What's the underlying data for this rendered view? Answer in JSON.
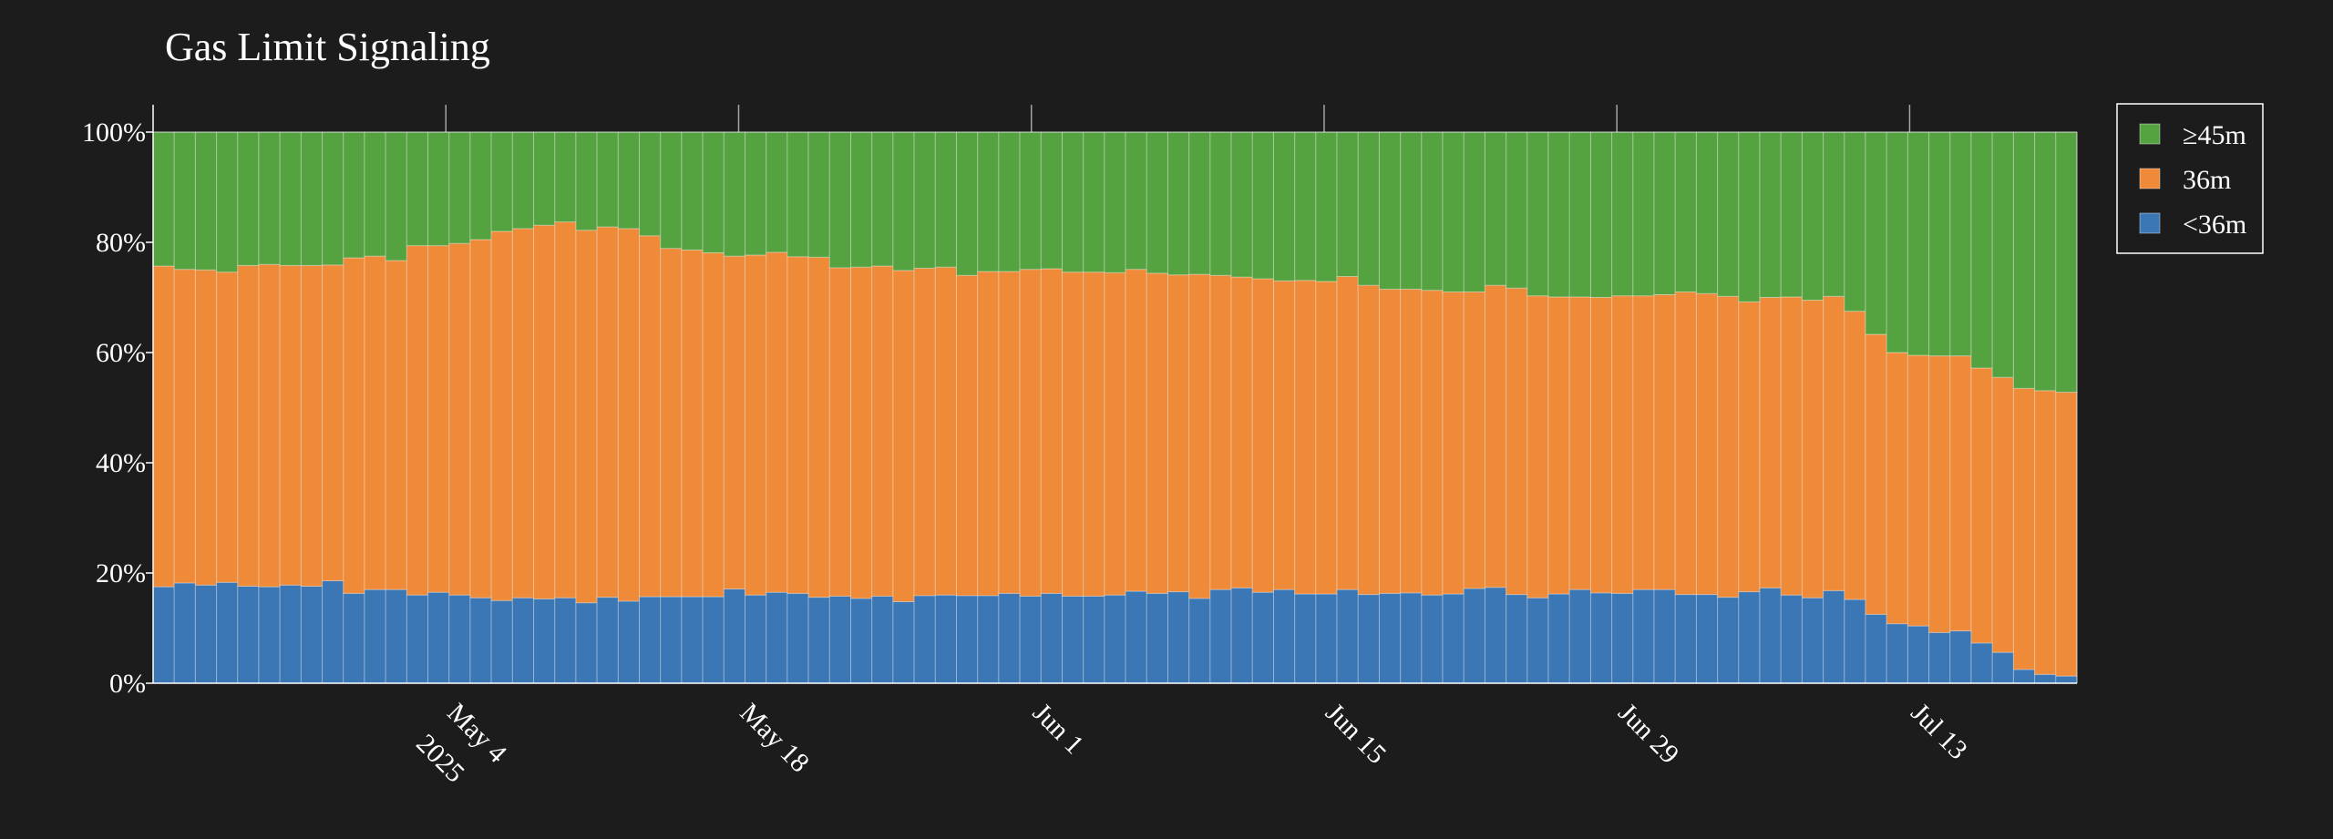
{
  "chart_data": {
    "type": "bar",
    "stacked": true,
    "normalized": true,
    "title": "Gas Limit Signaling",
    "xlabel": "",
    "ylabel": "",
    "ylim": [
      0,
      100
    ],
    "y_ticks": [
      "0%",
      "20%",
      "40%",
      "60%",
      "80%",
      "100%"
    ],
    "x_start": "2025-04-20",
    "x_end": "2025-07-20",
    "x_ticks": [
      {
        "date": "2025-05-04",
        "label": "May 4",
        "sublabel": "2025"
      },
      {
        "date": "2025-05-18",
        "label": "May 18",
        "sublabel": ""
      },
      {
        "date": "2025-06-01",
        "label": "Jun 1",
        "sublabel": ""
      },
      {
        "date": "2025-06-15",
        "label": "Jun 15",
        "sublabel": ""
      },
      {
        "date": "2025-06-29",
        "label": "Jun 29",
        "sublabel": ""
      },
      {
        "date": "2025-07-13",
        "label": "Jul 13",
        "sublabel": ""
      }
    ],
    "legend_position": "top-right",
    "legend": [
      {
        "name": "≥45m",
        "color": "#55a340"
      },
      {
        "name": "36m",
        "color": "#ef8a38"
      },
      {
        "name": "<36m",
        "color": "#3b77b5"
      }
    ],
    "series": [
      {
        "name": "<36m",
        "color": "#3b77b5",
        "values": [
          17.5,
          18.2,
          17.8,
          18.3,
          17.6,
          17.5,
          17.8,
          17.6,
          18.6,
          16.3,
          17.0,
          17.0,
          16.0,
          16.5,
          16.0,
          15.5,
          15.0,
          15.5,
          15.3,
          15.5,
          14.6,
          15.6,
          14.9,
          15.7,
          15.7,
          15.7,
          15.7,
          17.1,
          16.0,
          16.5,
          16.3,
          15.6,
          15.8,
          15.4,
          15.8,
          14.8,
          15.9,
          16.0,
          15.9,
          15.9,
          16.3,
          15.8,
          16.3,
          15.8,
          15.8,
          16.0,
          16.7,
          16.3,
          16.6,
          15.4,
          17.0,
          17.3,
          16.5,
          17.0,
          16.2,
          16.2,
          17.0,
          16.1,
          16.3,
          16.4,
          16.0,
          16.2,
          17.2,
          17.4,
          16.1,
          15.5,
          16.2,
          17.0,
          16.4,
          16.3,
          17.0,
          17.0,
          16.1,
          16.1,
          15.6,
          16.6,
          17.3,
          16.0,
          15.5,
          16.8,
          15.2,
          12.5,
          10.8,
          10.4,
          9.2,
          9.5,
          7.3,
          5.6,
          2.5,
          1.6,
          1.3
        ]
      },
      {
        "name": "36m",
        "color": "#ef8a38",
        "values": [
          58.2,
          56.9,
          57.2,
          56.3,
          58.2,
          58.5,
          58.0,
          58.2,
          57.3,
          60.9,
          60.5,
          59.7,
          63.4,
          62.9,
          63.8,
          65.0,
          67.0,
          67.0,
          67.8,
          68.2,
          67.6,
          67.2,
          67.6,
          65.5,
          63.2,
          62.9,
          62.4,
          60.4,
          61.7,
          61.7,
          61.1,
          61.7,
          59.6,
          60.1,
          59.9,
          60.1,
          59.4,
          59.5,
          58.1,
          58.8,
          58.4,
          59.3,
          58.9,
          58.8,
          58.8,
          58.5,
          58.4,
          58.1,
          57.5,
          58.8,
          57.0,
          56.4,
          56.9,
          56.0,
          56.9,
          56.7,
          56.8,
          56.1,
          55.2,
          55.1,
          55.3,
          54.8,
          53.8,
          54.8,
          55.6,
          54.8,
          53.9,
          53.1,
          53.6,
          54.0,
          53.3,
          53.5,
          54.9,
          54.6,
          54.6,
          52.6,
          52.7,
          54.1,
          54.0,
          53.4,
          52.3,
          50.8,
          49.2,
          49.1,
          50.2,
          49.9,
          49.9,
          49.9,
          51.0,
          51.5,
          51.5
        ]
      },
      {
        "name": "≥45m",
        "color": "#55a340",
        "values": [
          24.3,
          24.9,
          25.0,
          25.4,
          24.2,
          24.0,
          24.2,
          24.2,
          24.1,
          22.8,
          22.5,
          23.3,
          20.6,
          20.6,
          20.2,
          19.5,
          18.0,
          17.5,
          16.9,
          16.3,
          17.8,
          17.2,
          17.5,
          18.8,
          21.1,
          21.4,
          21.9,
          22.5,
          22.3,
          21.8,
          22.6,
          22.7,
          24.6,
          24.5,
          24.3,
          25.1,
          24.7,
          24.5,
          26.0,
          25.3,
          25.3,
          24.9,
          24.8,
          25.4,
          25.4,
          25.5,
          24.9,
          25.6,
          25.9,
          25.8,
          26.0,
          26.3,
          26.6,
          27.0,
          26.9,
          27.1,
          26.2,
          27.8,
          28.5,
          28.5,
          28.7,
          29.0,
          29.0,
          27.8,
          28.3,
          29.7,
          29.9,
          29.9,
          30.0,
          29.7,
          29.7,
          29.5,
          29.0,
          29.3,
          29.8,
          30.8,
          30.0,
          29.9,
          30.5,
          29.8,
          32.5,
          36.7,
          40.0,
          40.5,
          40.6,
          40.6,
          42.8,
          44.5,
          46.5,
          46.9,
          47.2
        ]
      }
    ]
  }
}
